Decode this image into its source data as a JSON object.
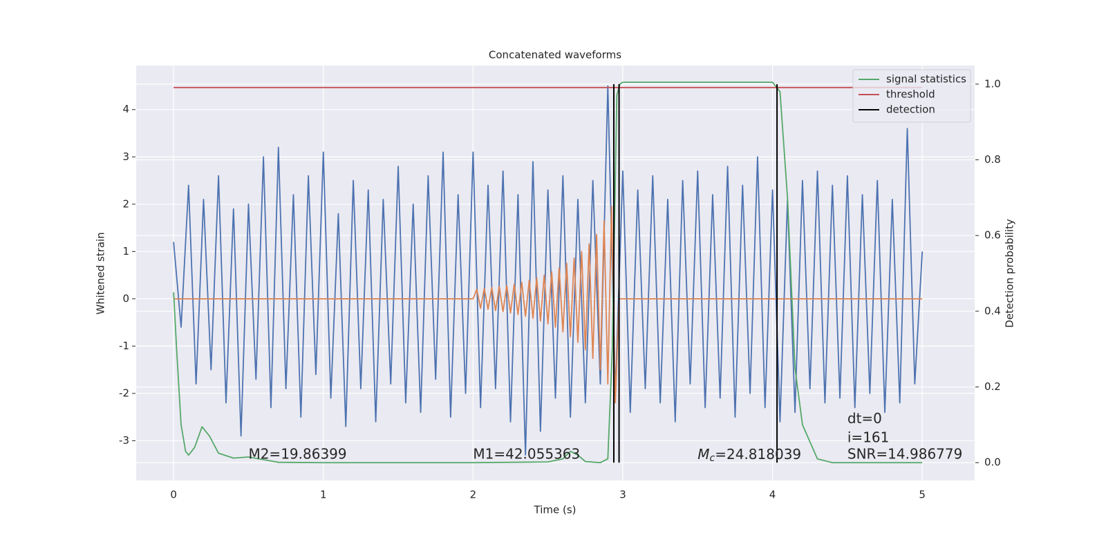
{
  "chart_data": {
    "type": "line",
    "title": "Concatenated waveforms",
    "xlabel": "Time (s)",
    "ylabel": "Whitened strain",
    "y2label": "Detection probability",
    "xlim": [
      -0.25,
      5.35
    ],
    "ylim": [
      -3.84,
      4.93
    ],
    "y2lim": [
      -0.047,
      1.049
    ],
    "xticks": [
      0,
      1,
      2,
      3,
      4,
      5
    ],
    "yticks": [
      -3,
      -2,
      -1,
      0,
      1,
      2,
      3,
      4
    ],
    "y2ticks": [
      {
        "value": 0,
        "label": "0.0"
      },
      0.2,
      0.4,
      0.6,
      0.8,
      {
        "value": 1,
        "label": "1.0"
      }
    ],
    "grid": true,
    "legend": "upper right",
    "series": [
      {
        "color": "#4c72b0",
        "x": [
          0,
          0.05,
          0.1,
          0.15,
          0.2,
          0.25,
          0.3,
          0.35,
          0.4,
          0.45,
          0.5,
          0.55,
          0.6,
          0.65,
          0.7,
          0.75,
          0.8,
          0.85,
          0.9,
          0.95,
          1,
          1.05,
          1.1,
          1.15,
          1.2,
          1.25,
          1.3,
          1.35,
          1.4,
          1.45,
          1.5,
          1.55,
          1.6,
          1.65,
          1.7,
          1.75,
          1.8,
          1.85,
          1.9,
          1.95,
          2,
          2.05,
          2.1,
          2.15,
          2.2,
          2.25,
          2.3,
          2.35,
          2.4,
          2.45,
          2.5,
          2.55,
          2.6,
          2.65,
          2.7,
          2.75,
          2.8,
          2.85,
          2.9,
          2.95,
          3,
          3.05,
          3.1,
          3.15,
          3.2,
          3.25,
          3.3,
          3.35,
          3.4,
          3.45,
          3.5,
          3.55,
          3.6,
          3.65,
          3.7,
          3.75,
          3.8,
          3.85,
          3.9,
          3.95,
          4,
          4.05,
          4.1,
          4.15,
          4.2,
          4.25,
          4.3,
          4.35,
          4.4,
          4.45,
          4.5,
          4.55,
          4.6,
          4.65,
          4.7,
          4.75,
          4.8,
          4.85,
          4.9,
          4.95,
          5
        ],
        "values": [
          1.2,
          -0.6,
          2.4,
          -1.8,
          2.1,
          -1.5,
          2.6,
          -2.2,
          1.9,
          -2.9,
          2.0,
          -1.7,
          3.0,
          -2.3,
          3.2,
          -1.9,
          2.2,
          -2.5,
          2.6,
          -1.6,
          3.1,
          -2.1,
          1.8,
          -2.7,
          2.5,
          -1.9,
          2.3,
          -2.6,
          2.1,
          -1.8,
          2.8,
          -2.2,
          2.0,
          -2.4,
          2.6,
          -1.7,
          3.1,
          -2.5,
          2.2,
          -2.0,
          3.1,
          -2.3,
          2.4,
          -1.9,
          2.7,
          -2.6,
          2.2,
          -3.3,
          2.9,
          -2.8,
          2.3,
          -2.1,
          2.6,
          -2.5,
          2.1,
          -2.2,
          2.5,
          -1.8,
          4.5,
          -2.0,
          2.7,
          -2.4,
          2.3,
          -1.9,
          2.6,
          -2.2,
          2.1,
          -2.6,
          2.5,
          -1.8,
          2.7,
          -2.3,
          2.2,
          -2.1,
          2.8,
          -2.5,
          2.4,
          -2.0,
          3.0,
          -2.3,
          2.3,
          -2.6,
          2.1,
          -2.4,
          2.5,
          -1.9,
          2.7,
          -2.2,
          2.4,
          -2.1,
          2.6,
          -2.3,
          2.2,
          -2.0,
          2.5,
          -2.4,
          2.1,
          -2.2,
          3.6,
          -1.8,
          1.0
        ]
      },
      {
        "color": "#dd8452",
        "x": [
          0,
          2,
          2.025,
          2.05,
          2.075,
          2.1,
          2.125,
          2.15,
          2.175,
          2.2,
          2.225,
          2.25,
          2.275,
          2.3,
          2.325,
          2.35,
          2.375,
          2.4,
          2.425,
          2.45,
          2.475,
          2.5,
          2.525,
          2.55,
          2.575,
          2.6,
          2.625,
          2.65,
          2.675,
          2.7,
          2.725,
          2.75,
          2.775,
          2.8,
          2.825,
          2.85,
          2.875,
          2.9,
          2.925,
          2.95,
          2.975,
          5
        ],
        "values": [
          0,
          0,
          0.2,
          -0.2,
          0.22,
          -0.22,
          0.24,
          -0.25,
          0.26,
          -0.27,
          0.28,
          -0.3,
          0.31,
          -0.33,
          0.35,
          -0.37,
          0.39,
          -0.41,
          0.44,
          -0.47,
          0.5,
          -0.53,
          0.57,
          -0.6,
          0.65,
          -0.7,
          0.75,
          -0.8,
          0.86,
          -0.92,
          1.0,
          -1.08,
          1.16,
          -1.26,
          1.36,
          -1.5,
          1.65,
          -1.8,
          1.95,
          -2.2,
          0,
          0
        ]
      },
      {
        "name": "signal statistics",
        "color": "#55a868",
        "axis": "y2",
        "x": [
          0,
          0.02,
          0.05,
          0.08,
          0.1,
          0.14,
          0.19,
          0.24,
          0.3,
          0.4,
          0.5,
          0.6,
          0.7,
          1,
          2,
          2.5,
          2.6,
          2.65,
          2.7,
          2.75,
          2.85,
          2.9,
          2.93,
          2.96,
          2.98,
          3,
          3.5,
          4,
          4.05,
          4.1,
          4.15,
          4.2,
          4.3,
          4.4,
          5
        ],
        "values": [
          0.45,
          0.3,
          0.1,
          0.03,
          0.02,
          0.04,
          0.095,
          0.07,
          0.025,
          0.012,
          0.015,
          0.008,
          0.001,
          0,
          0,
          0.002,
          0.01,
          0.03,
          0.02,
          0.003,
          0,
          0.01,
          0.3,
          0.97,
          1.0,
          1.005,
          1.005,
          1.005,
          0.98,
          0.7,
          0.25,
          0.1,
          0.01,
          0,
          0
        ]
      },
      {
        "name": "threshold",
        "color": "#c44e52",
        "axis": "y2",
        "x": [
          0,
          5
        ],
        "values": [
          0.991,
          0.991
        ]
      },
      {
        "name": "detection",
        "color": "#000000",
        "axis": "y2",
        "type": "vline",
        "x": [
          2.94,
          2.975,
          4.03
        ],
        "values": [
          1,
          1,
          1
        ]
      }
    ],
    "annotations": [
      {
        "text": "M2=19.86399",
        "x": 0.5,
        "y": -3.3
      },
      {
        "text": "M1=42.055363",
        "x": 2.0,
        "y": -3.3
      },
      {
        "parts": [
          "M",
          "c",
          "=24.818039"
        ],
        "x": 3.5,
        "y": -3.3
      },
      {
        "text": "dt=0",
        "x": 4.5,
        "y": -2.55
      },
      {
        "text": "i=161",
        "x": 4.5,
        "y": -2.95
      },
      {
        "text": "SNR=14.986779",
        "x": 4.5,
        "y": -3.3
      }
    ]
  }
}
